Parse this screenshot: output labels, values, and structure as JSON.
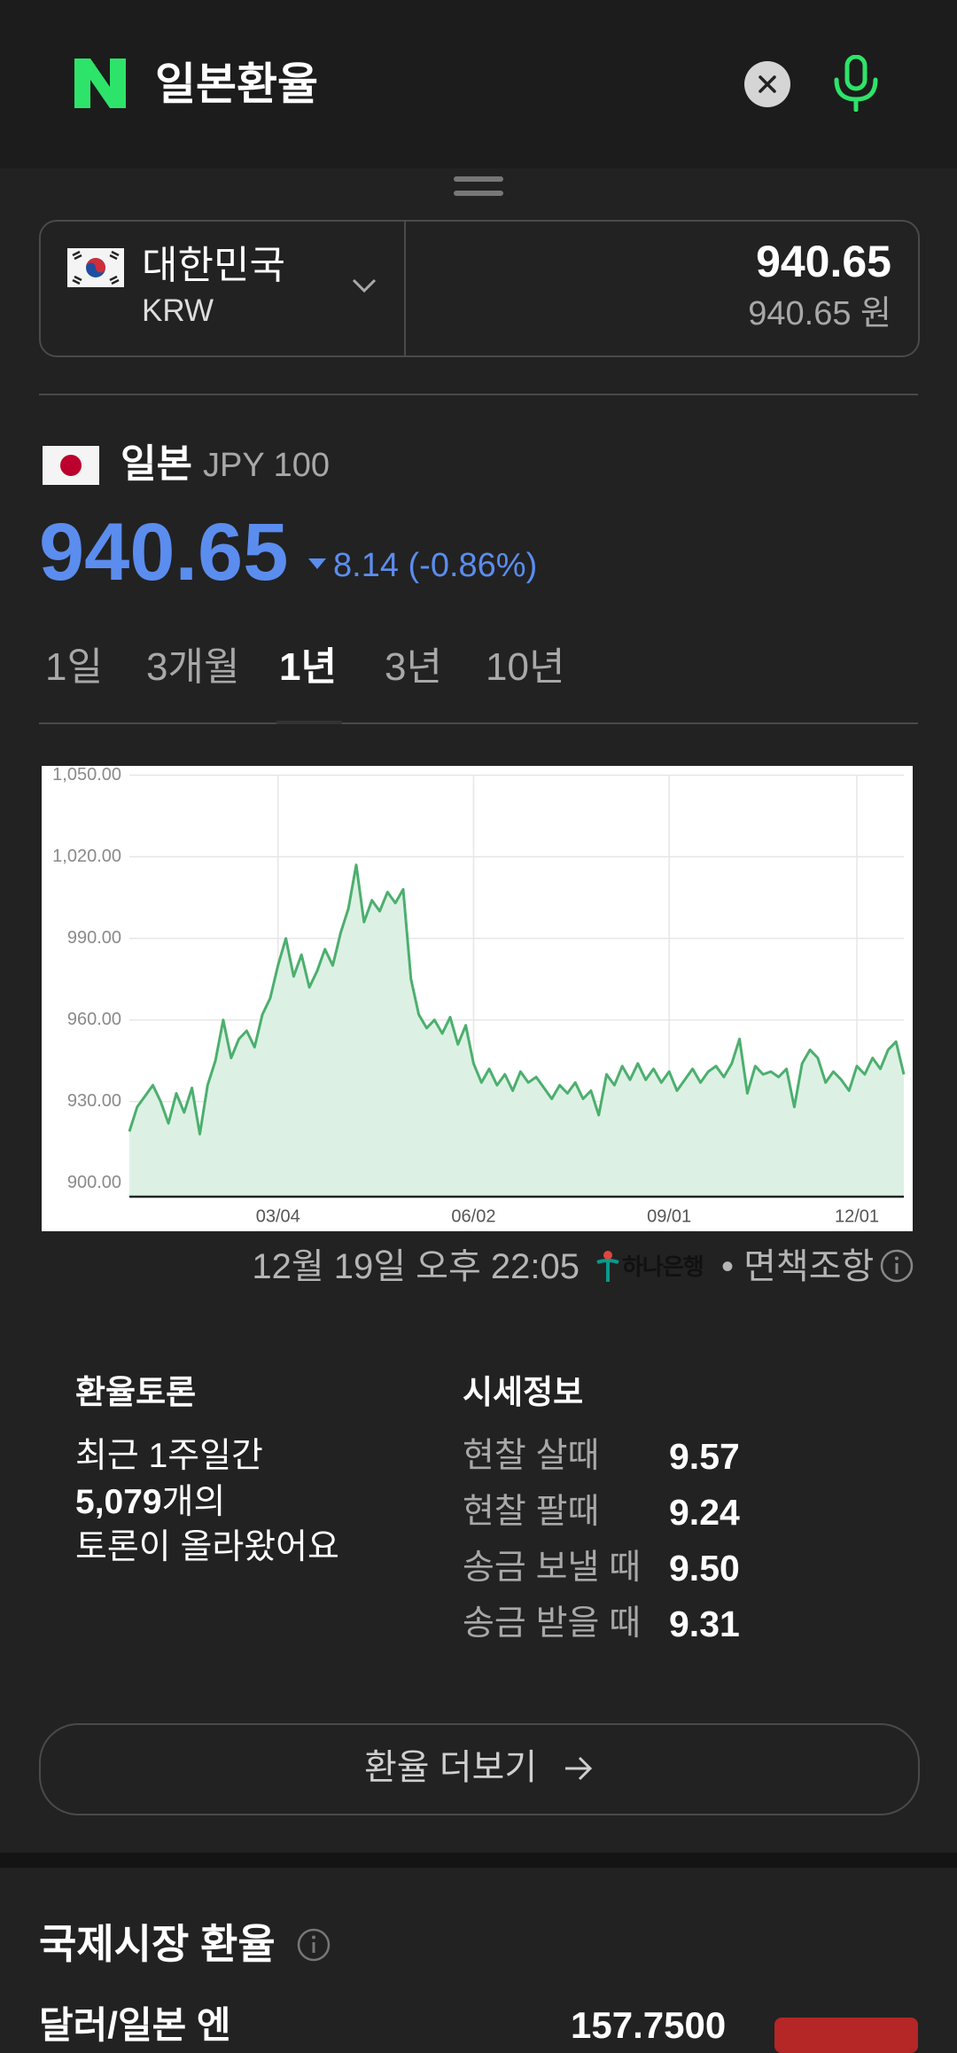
{
  "header": {
    "title": "일본환율"
  },
  "converter": {
    "country": "대한민국",
    "code": "KRW",
    "amount": "940.65",
    "amount_won": "940.65 원"
  },
  "currency": {
    "name": "일본",
    "code": "JPY 100",
    "rate": "940.65",
    "change": "8.14 (-0.86%)"
  },
  "tabs": [
    "1일",
    "3개월",
    "1년",
    "3년",
    "10년"
  ],
  "chart_data": {
    "type": "line",
    "color": "#4caf6e",
    "grid": true,
    "categories": [
      null,
      null,
      null,
      null,
      null,
      null,
      null,
      null,
      null,
      null,
      null,
      null,
      null,
      null,
      null,
      null,
      null,
      null,
      null,
      "03/04",
      null,
      null,
      null,
      null,
      null,
      null,
      null,
      null,
      null,
      null,
      null,
      null,
      null,
      null,
      null,
      null,
      null,
      null,
      null,
      null,
      null,
      null,
      null,
      null,
      "06/02",
      null,
      null,
      null,
      null,
      null,
      null,
      null,
      null,
      null,
      null,
      null,
      null,
      null,
      null,
      null,
      null,
      null,
      null,
      null,
      null,
      null,
      null,
      null,
      null,
      "09/01",
      null,
      null,
      null,
      null,
      null,
      null,
      null,
      null,
      null,
      null,
      null,
      null,
      null,
      null,
      null,
      null,
      null,
      null,
      null,
      null,
      null,
      null,
      null,
      "12/01",
      null,
      null,
      null,
      null,
      null,
      null
    ],
    "values": [
      919,
      928,
      932,
      936,
      930,
      922,
      933,
      926,
      935,
      918,
      936,
      945,
      960,
      946,
      953,
      956,
      950,
      962,
      968,
      980,
      990,
      976,
      984,
      972,
      978,
      986,
      980,
      992,
      1001,
      1017,
      996,
      1004,
      1000,
      1007,
      1003,
      1008,
      975,
      962,
      957,
      960,
      955,
      961,
      951,
      958,
      944,
      937,
      942,
      936,
      940,
      934,
      941,
      937,
      939,
      935,
      931,
      936,
      933,
      937,
      931,
      934,
      925,
      940,
      936,
      943,
      938,
      944,
      938,
      942,
      937,
      941,
      934,
      938,
      942,
      937,
      941,
      943,
      939,
      944,
      953,
      933,
      943,
      940,
      941,
      939,
      942,
      928,
      944,
      949,
      946,
      937,
      941,
      938,
      934,
      943,
      940,
      946,
      942,
      949,
      952,
      940
    ],
    "ylim": [
      895,
      1050
    ],
    "yticks": [
      {
        "value": 900,
        "label": "900.00"
      },
      {
        "value": 930,
        "label": "930.00"
      },
      {
        "value": 960,
        "label": "960.00"
      },
      {
        "value": 990,
        "label": "990.00"
      },
      {
        "value": 1020,
        "label": "1,020.00"
      },
      {
        "value": 1050,
        "label": "1,050.00"
      }
    ]
  },
  "updated": "12월 19일 오후 22:05",
  "bank": "하나은행",
  "disclaimer": "• 면책조항",
  "discussion": {
    "title": "환율토론",
    "line1": "최근 1주일간",
    "count": "5,079",
    "count_suffix": "개의",
    "line3": "토론이 올라왔어요"
  },
  "market": {
    "title": "시세정보",
    "rows": [
      [
        "현찰 살때",
        "9.57"
      ],
      [
        "현찰 팔때",
        "9.24"
      ],
      [
        "송금 보낼 때",
        "9.50"
      ],
      [
        "송금 받을 때",
        "9.31"
      ]
    ]
  },
  "more_button": "환율 더보기",
  "section": {
    "title": "국제시장 환율",
    "pair": "달러/일본 엔",
    "price": "157.7500"
  }
}
